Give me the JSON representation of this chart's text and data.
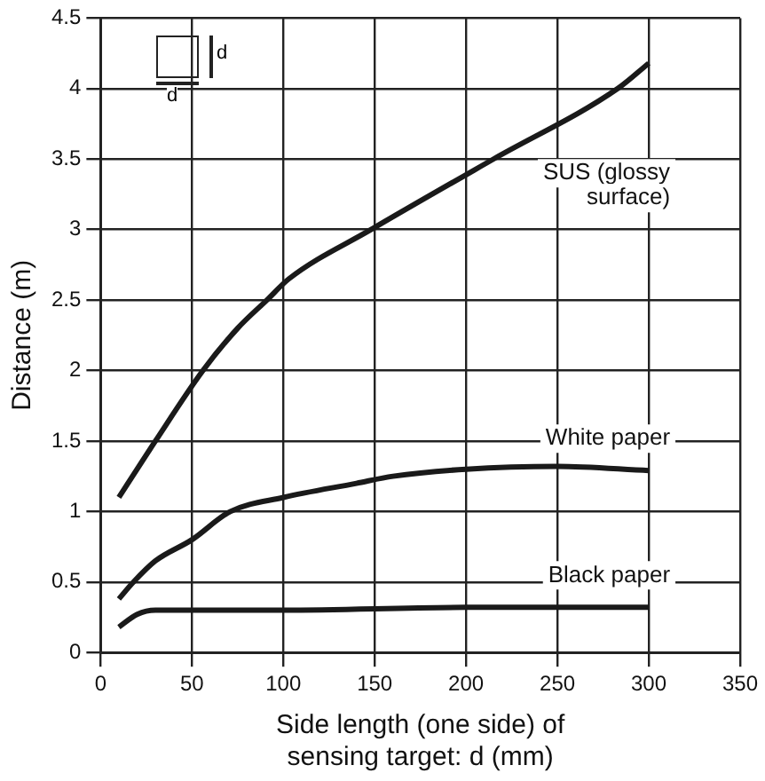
{
  "chart_data": {
    "type": "line",
    "xlabel": "Side length (one side) of sensing target: d (mm)",
    "ylabel": "Distance (m)",
    "xlim": [
      0,
      350
    ],
    "xticks": [
      0,
      50,
      100,
      150,
      200,
      250,
      300,
      350
    ],
    "ylim": [
      0,
      4.5
    ],
    "yticks": [
      0,
      0.5,
      1,
      1.5,
      2,
      2.5,
      3,
      3.5,
      4,
      4.5
    ],
    "grid": true,
    "legend": false,
    "marker": "none",
    "line_style": "solid",
    "annotations": [
      "d",
      "d"
    ],
    "series": [
      {
        "name": "SUS (glossy surface)",
        "color": "#1a1a1a",
        "x": [
          10,
          30,
          56,
          75,
          91,
          103,
          148,
          215,
          283,
          300
        ],
        "values": [
          1.1,
          1.5,
          2.0,
          2.3,
          2.5,
          2.65,
          3.0,
          3.5,
          4.0,
          4.18
        ]
      },
      {
        "name": "White paper",
        "color": "#1a1a1a",
        "x": [
          10,
          18,
          30,
          50,
          71,
          100,
          140,
          160,
          200,
          250,
          300
        ],
        "values": [
          0.38,
          0.5,
          0.65,
          0.8,
          1.0,
          1.1,
          1.2,
          1.25,
          1.3,
          1.32,
          1.29
        ]
      },
      {
        "name": "Black paper",
        "color": "#1a1a1a",
        "x": [
          10,
          20,
          30,
          100,
          200,
          300
        ],
        "values": [
          0.18,
          0.27,
          0.3,
          0.3,
          0.32,
          0.32
        ]
      }
    ]
  }
}
